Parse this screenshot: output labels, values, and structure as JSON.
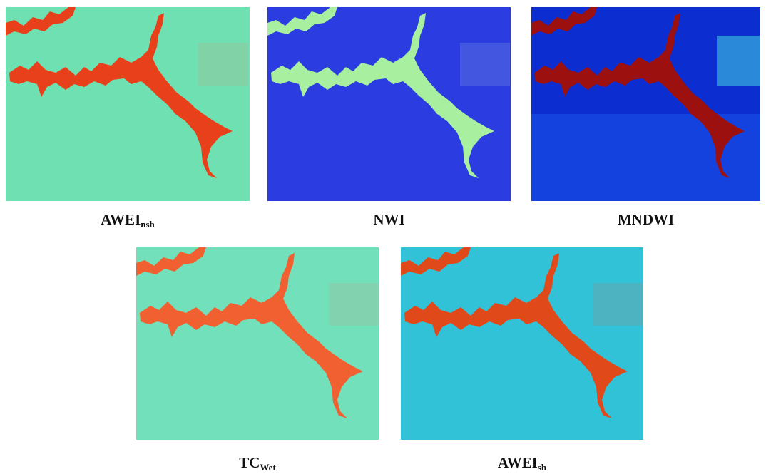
{
  "panels": [
    {
      "label": "AWEI",
      "subscript": "nsh"
    },
    {
      "label": "NWI"
    },
    {
      "label": "MNDWI"
    },
    {
      "label": "TC",
      "subscript": "Wet"
    },
    {
      "label": "AWEI",
      "subscript": "sh"
    }
  ]
}
